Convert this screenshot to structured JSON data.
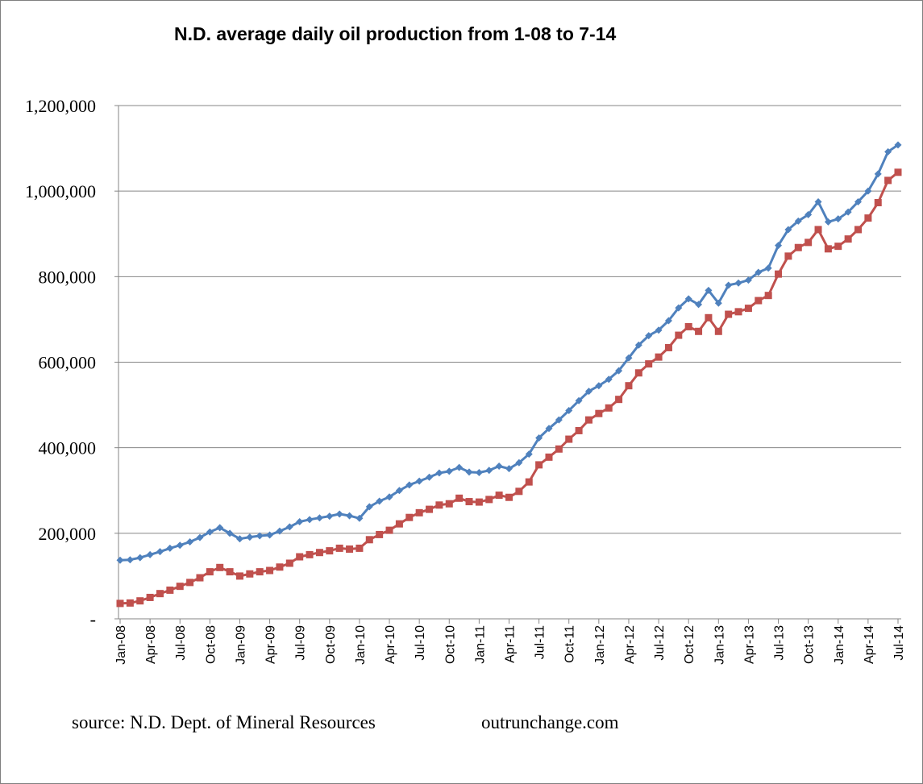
{
  "chart_data": {
    "type": "line",
    "title": "N.D. average daily oil production from 1-08 to 7-14",
    "xlabel": "",
    "ylabel": "",
    "ylim": [
      0,
      1200000
    ],
    "ytick_values": [
      0,
      200000,
      400000,
      600000,
      800000,
      1000000,
      1200000
    ],
    "ytick_labels": [
      "-",
      "200,000",
      "400,000",
      "600,000",
      "800,000",
      "1,000,000",
      "1,200,000"
    ],
    "grid": true,
    "legend": "none",
    "x": [
      "Jan-08",
      "Feb-08",
      "Mar-08",
      "Apr-08",
      "May-08",
      "Jun-08",
      "Jul-08",
      "Aug-08",
      "Sep-08",
      "Oct-08",
      "Nov-08",
      "Dec-08",
      "Jan-09",
      "Feb-09",
      "Mar-09",
      "Apr-09",
      "May-09",
      "Jun-09",
      "Jul-09",
      "Aug-09",
      "Sep-09",
      "Oct-09",
      "Nov-09",
      "Dec-09",
      "Jan-10",
      "Feb-10",
      "Mar-10",
      "Apr-10",
      "May-10",
      "Jun-10",
      "Jul-10",
      "Aug-10",
      "Sep-10",
      "Oct-10",
      "Nov-10",
      "Dec-10",
      "Jan-11",
      "Feb-11",
      "Mar-11",
      "Apr-11",
      "May-11",
      "Jun-11",
      "Jul-11",
      "Aug-11",
      "Sep-11",
      "Oct-11",
      "Nov-11",
      "Dec-11",
      "Jan-12",
      "Feb-12",
      "Mar-12",
      "Apr-12",
      "May-12",
      "Jun-12",
      "Jul-12",
      "Aug-12",
      "Sep-12",
      "Oct-12",
      "Nov-12",
      "Dec-12",
      "Jan-13",
      "Feb-13",
      "Mar-13",
      "Apr-13",
      "May-13",
      "Jun-13",
      "Jul-13",
      "Aug-13",
      "Sep-13",
      "Oct-13",
      "Nov-13",
      "Dec-13",
      "Jan-14",
      "Feb-14",
      "Mar-14",
      "Apr-14",
      "May-14",
      "Jun-14",
      "Jul-14"
    ],
    "x_tick_labels": [
      "Jan-08",
      "Apr-08",
      "Jul-08",
      "Oct-08",
      "Jan-09",
      "Apr-09",
      "Jul-09",
      "Oct-09",
      "Jan-10",
      "Apr-10",
      "Jul-10",
      "Oct-10",
      "Jan-11",
      "Apr-11",
      "Jul-11",
      "Oct-11",
      "Jan-12",
      "Apr-12",
      "Jul-12",
      "Oct-12",
      "Jan-13",
      "Apr-13",
      "Jul-13",
      "Oct-13",
      "Jan-14",
      "Apr-14",
      "Jul-14"
    ],
    "series": [
      {
        "color": "#4f81bd",
        "marker": "diamond",
        "values": [
          137000,
          138000,
          143000,
          150000,
          157000,
          165000,
          172000,
          180000,
          190000,
          203000,
          213000,
          200000,
          187000,
          191000,
          194000,
          196000,
          205000,
          215000,
          227000,
          232000,
          236000,
          240000,
          245000,
          241000,
          235000,
          262000,
          275000,
          285000,
          300000,
          313000,
          322000,
          331000,
          341000,
          345000,
          354000,
          343000,
          342000,
          347000,
          357000,
          351000,
          365000,
          385000,
          423000,
          445000,
          465000,
          487000,
          510000,
          532000,
          545000,
          560000,
          580000,
          610000,
          640000,
          662000,
          675000,
          697000,
          727000,
          748000,
          735000,
          768000,
          738000,
          780000,
          785000,
          792000,
          810000,
          820000,
          873000,
          910000,
          930000,
          945000,
          975000,
          928000,
          935000,
          951000,
          975000,
          1000000,
          1040000,
          1092000,
          1108000
        ]
      },
      {
        "color": "#c0504d",
        "marker": "square",
        "values": [
          36000,
          37000,
          42000,
          50000,
          59000,
          67000,
          76000,
          85000,
          96000,
          110000,
          120000,
          110000,
          100000,
          105000,
          110000,
          113000,
          121000,
          130000,
          145000,
          150000,
          155000,
          159000,
          165000,
          163000,
          165000,
          185000,
          197000,
          207000,
          222000,
          237000,
          248000,
          256000,
          266000,
          269000,
          282000,
          274000,
          273000,
          279000,
          289000,
          284000,
          298000,
          320000,
          360000,
          378000,
          397000,
          420000,
          440000,
          465000,
          480000,
          493000,
          513000,
          545000,
          575000,
          596000,
          612000,
          634000,
          663000,
          683000,
          672000,
          704000,
          672000,
          712000,
          718000,
          726000,
          744000,
          756000,
          806000,
          848000,
          868000,
          880000,
          910000,
          865000,
          871000,
          888000,
          910000,
          937000,
          973000,
          1025000,
          1044000
        ]
      }
    ]
  },
  "footer": {
    "source": "source: N.D. Dept. of Mineral Resources",
    "site": "outrunchange.com"
  }
}
